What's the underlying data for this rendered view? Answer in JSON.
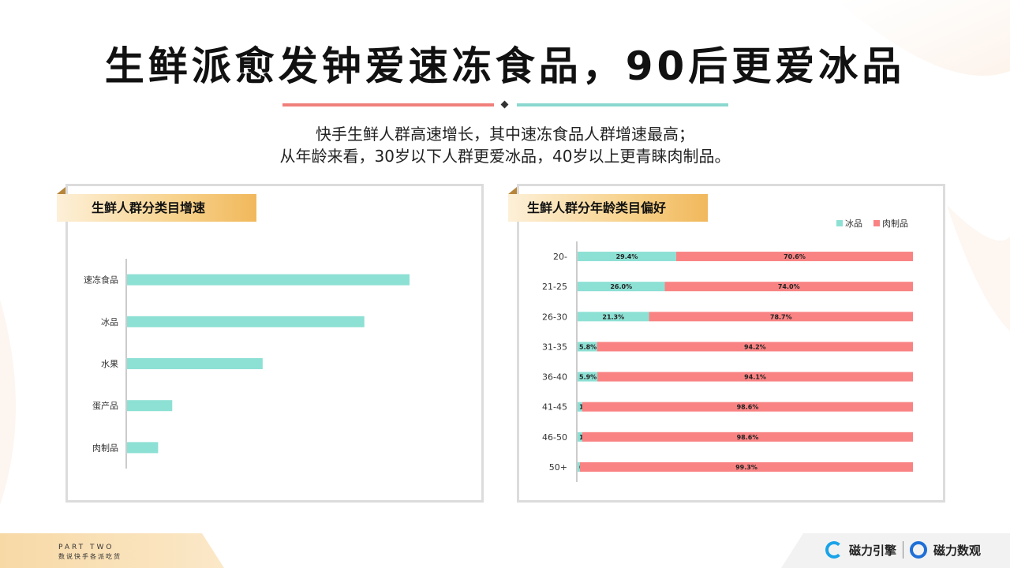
{
  "page": {
    "title": "生鲜派愈发钟爱速冻食品，90后更爱冰品",
    "subtitle_line1": "快手生鲜人群高速增长，其中速冻食品人群增速最高；",
    "subtitle_line2": "从年龄来看，30岁以下人群更爱冰品，40岁以上更青睐肉制品。"
  },
  "footer": {
    "part": "PART TWO",
    "tagline": "数说快手各派吃货",
    "logo1": "磁力引擎",
    "logo2": "磁力数观"
  },
  "colors": {
    "teal": "#8de0d4",
    "coral": "#f98383",
    "gold": "#f1b85c"
  },
  "chart_data": [
    {
      "type": "bar",
      "orientation": "horizontal",
      "title": "生鲜人群分类目增速",
      "categories": [
        "速冻食品",
        "冰品",
        "水果",
        "蛋产品",
        "肉制品"
      ],
      "values": [
        100,
        84,
        48,
        16,
        11
      ],
      "xlabel": "",
      "ylabel": "",
      "xlim": [
        0,
        100
      ],
      "grid": false,
      "color": "#8de0d4"
    },
    {
      "type": "bar",
      "orientation": "horizontal",
      "stacked": true,
      "percent": true,
      "title": "生鲜人群分年龄类目偏好",
      "categories": [
        "20-",
        "21-25",
        "26-30",
        "31-35",
        "36-40",
        "41-45",
        "46-50",
        "50+"
      ],
      "series": [
        {
          "name": "冰品",
          "color": "#8de0d4",
          "values": [
            29.4,
            26.0,
            21.3,
            5.8,
            5.9,
            1.4,
            1.4,
            0.7
          ]
        },
        {
          "name": "肉制品",
          "color": "#f98383",
          "values": [
            70.6,
            74.0,
            78.7,
            94.2,
            94.1,
            98.6,
            98.6,
            99.3
          ]
        }
      ],
      "xlim": [
        0,
        100
      ],
      "legend": "top-right",
      "grid": false
    }
  ]
}
